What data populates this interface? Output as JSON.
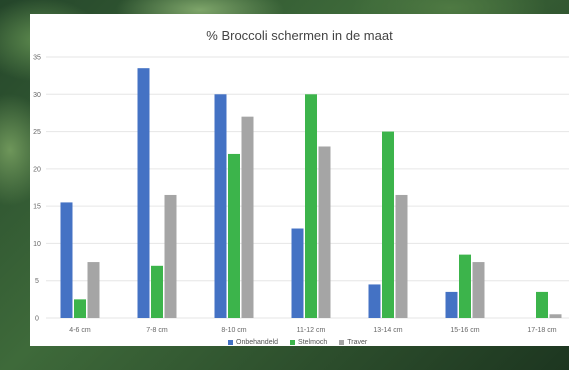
{
  "chart_data": {
    "type": "bar",
    "title": "% Broccoli schermen in de maat",
    "categories": [
      "4-6 cm",
      "7-8 cm",
      "8-10 cm",
      "11-12 cm",
      "13-14 cm",
      "15-16 cm",
      "17-18 cm"
    ],
    "series": [
      {
        "name": "Onbehandeld",
        "color": "#4472c4",
        "values": [
          15.5,
          33.5,
          30,
          12,
          4.5,
          3.5,
          0
        ]
      },
      {
        "name": "Stelmoch",
        "color": "#3cb44b",
        "values": [
          2.5,
          7,
          22,
          30,
          25,
          8.5,
          3.5
        ]
      },
      {
        "name": "Traver",
        "color": "#a5a5a5",
        "values": [
          7.5,
          16.5,
          27,
          23,
          16.5,
          7.5,
          0.5
        ]
      }
    ],
    "ylim": [
      0,
      35
    ],
    "yticks": [
      "0",
      "5",
      "10",
      "15",
      "20",
      "25",
      "30",
      "35"
    ],
    "grid": true,
    "legend_position": "bottom"
  }
}
